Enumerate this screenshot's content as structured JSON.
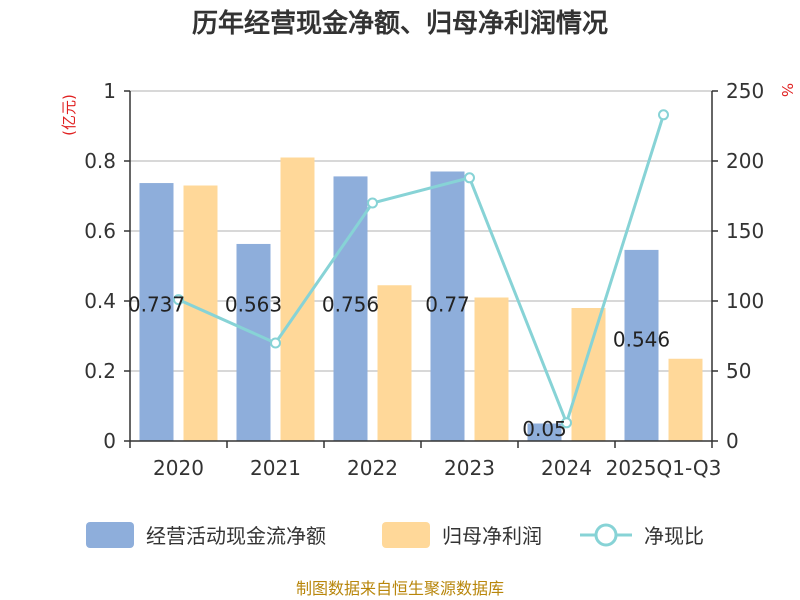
{
  "chart_data": {
    "type": "bar",
    "title": "历年经营现金净额、归母净利润情况",
    "categories": [
      "2020",
      "2021",
      "2022",
      "2023",
      "2024",
      "2025Q1-Q3"
    ],
    "series": [
      {
        "name": "经营活动现金流净额",
        "type": "bar",
        "axis": "left",
        "color": "#8eaedb",
        "values": [
          0.737,
          0.563,
          0.756,
          0.77,
          0.05,
          0.546
        ],
        "labels": [
          "0.737",
          "0.563",
          "0.756",
          "0.77",
          "0.05",
          "0.546"
        ]
      },
      {
        "name": "归母净利润",
        "type": "bar",
        "axis": "left",
        "color": "#ffd899",
        "values": [
          0.73,
          0.81,
          0.445,
          0.41,
          0.38,
          0.235
        ]
      },
      {
        "name": "净现比",
        "type": "line",
        "axis": "right",
        "color": "#87d3d6",
        "values": [
          101,
          70,
          170,
          188,
          13,
          233
        ]
      }
    ],
    "y_left": {
      "unit": "(亿元)",
      "min": 0,
      "max": 1,
      "ticks": [
        "0",
        "0.2",
        "0.4",
        "0.6",
        "0.8",
        "1"
      ]
    },
    "y_right": {
      "unit": "%",
      "min": 0,
      "max": 250,
      "ticks": [
        "0",
        "50",
        "100",
        "150",
        "200",
        "250"
      ]
    },
    "grid": true,
    "legend_position": "bottom"
  },
  "source": "制图数据来自恒生聚源数据库"
}
